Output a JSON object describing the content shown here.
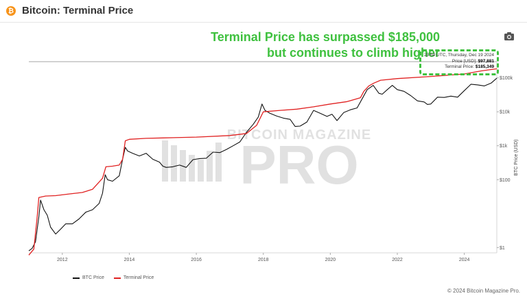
{
  "header": {
    "badge": "₿",
    "title": "Bitcoin: Terminal Price"
  },
  "annotation": {
    "line1": "Terminal Price has surpassed $185,000",
    "line2": "but continues to climb higher",
    "color": "#3fc13f"
  },
  "tooltip": {
    "timestamp": "23:59 UTC, Thursday, Dec 19 2024",
    "price_label": "Price [USD]:",
    "price_value": "$97,881",
    "terminal_label": "Terminal Price:",
    "terminal_value": "$185,349"
  },
  "watermark": {
    "top": "BITCOIN MAGAZINE",
    "main": "PRO"
  },
  "footer": "© 2024 Bitcoin Magazine Pro.",
  "icons": {
    "camera": "camera-icon",
    "btc": "bitcoin-icon"
  },
  "chart_data": {
    "type": "line",
    "title": "Bitcoin: Terminal Price",
    "ylabel": "BTC Price (USD)",
    "yscale": "log",
    "ylim": [
      0.7,
      300000
    ],
    "xlim": [
      2011.0,
      2024.97
    ],
    "x_ticks": [
      "2012",
      "2014",
      "2016",
      "2018",
      "2020",
      "2022",
      "2024"
    ],
    "y_ticks": [
      {
        "value": 1,
        "label": "$1"
      },
      {
        "value": 100,
        "label": "$100"
      },
      {
        "value": 1000,
        "label": "$1k"
      },
      {
        "value": 10000,
        "label": "$10k"
      },
      {
        "value": 100000,
        "label": "$100k"
      }
    ],
    "legend": {
      "position": "bottom-left"
    },
    "grid": false,
    "series": [
      {
        "name": "BTC Price",
        "color": "#111111",
        "x": [
          2011.0,
          2011.1,
          2011.2,
          2011.3,
          2011.35,
          2011.45,
          2011.55,
          2011.65,
          2011.8,
          2011.95,
          2012.1,
          2012.3,
          2012.5,
          2012.7,
          2012.9,
          2013.1,
          2013.2,
          2013.28,
          2013.35,
          2013.5,
          2013.7,
          2013.8,
          2013.88,
          2013.95,
          2014.1,
          2014.3,
          2014.5,
          2014.7,
          2014.9,
          2015.0,
          2015.1,
          2015.3,
          2015.5,
          2015.7,
          2015.9,
          2016.1,
          2016.3,
          2016.5,
          2016.7,
          2016.9,
          2017.1,
          2017.3,
          2017.5,
          2017.7,
          2017.85,
          2017.96,
          2018.05,
          2018.2,
          2018.4,
          2018.6,
          2018.8,
          2018.95,
          2019.1,
          2019.3,
          2019.5,
          2019.7,
          2019.9,
          2020.05,
          2020.2,
          2020.4,
          2020.6,
          2020.8,
          2020.95,
          2021.1,
          2021.28,
          2021.45,
          2021.55,
          2021.7,
          2021.85,
          2022.0,
          2022.2,
          2022.4,
          2022.6,
          2022.8,
          2022.9,
          2023.0,
          2023.2,
          2023.4,
          2023.6,
          2023.8,
          2024.0,
          2024.2,
          2024.4,
          2024.6,
          2024.8,
          2024.97
        ],
        "values": [
          0.8,
          0.95,
          1.5,
          8,
          25,
          13,
          9,
          4,
          2.5,
          3.5,
          5,
          5,
          7,
          11,
          13,
          20,
          40,
          140,
          100,
          90,
          130,
          400,
          900,
          700,
          600,
          500,
          600,
          400,
          330,
          250,
          230,
          240,
          270,
          230,
          390,
          420,
          430,
          650,
          630,
          780,
          1000,
          1300,
          2500,
          4300,
          7000,
          17000,
          11000,
          9000,
          7500,
          6500,
          6000,
          3700,
          3800,
          5000,
          11000,
          9000,
          7300,
          8500,
          5500,
          9500,
          11500,
          13000,
          24000,
          45000,
          60000,
          35000,
          33000,
          45000,
          60000,
          45000,
          40000,
          30000,
          21000,
          19500,
          16500,
          17000,
          27000,
          26500,
          29000,
          27000,
          42000,
          65000,
          62000,
          58000,
          70000,
          97881
        ]
      },
      {
        "name": "Terminal Price",
        "color": "#e02020",
        "x": [
          2011.0,
          2011.15,
          2011.25,
          2011.3,
          2011.5,
          2011.8,
          2012.2,
          2012.6,
          2012.9,
          2013.2,
          2013.3,
          2013.5,
          2013.7,
          2013.8,
          2013.88,
          2014.0,
          2014.5,
          2015.0,
          2016.0,
          2017.0,
          2017.5,
          2017.8,
          2018.0,
          2018.5,
          2019.0,
          2019.5,
          2020.0,
          2020.5,
          2020.9,
          2021.0,
          2021.15,
          2021.3,
          2021.5,
          2022.0,
          2023.0,
          2024.0,
          2024.5,
          2024.97
        ],
        "values": [
          0.6,
          0.9,
          8,
          30,
          33,
          34,
          38,
          42,
          52,
          110,
          240,
          250,
          270,
          400,
          1400,
          1550,
          1650,
          1700,
          1800,
          2000,
          2300,
          4000,
          10000,
          11000,
          12000,
          14000,
          17000,
          20000,
          26000,
          40000,
          58000,
          70000,
          85000,
          95000,
          110000,
          130000,
          160000,
          185349
        ]
      }
    ]
  }
}
